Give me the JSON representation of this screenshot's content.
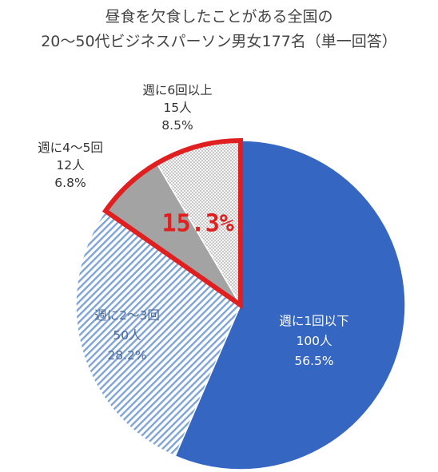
{
  "chart_data": {
    "type": "pie",
    "title_lines": [
      "昼食を欠食したことがある全国の",
      "20～50代ビジネスパーソン男女177名（単一回答）"
    ],
    "slices": [
      {
        "label": "週に1回以下",
        "count": "100人",
        "percent_label": "56.5%",
        "value": 56.5,
        "color": "#3567c2"
      },
      {
        "label": "週に2～3回",
        "count": "50人",
        "percent_label": "28.2%",
        "value": 28.2,
        "color": "#8fb1dc"
      },
      {
        "label": "週に4～5回",
        "count": "12人",
        "percent_label": "6.8%",
        "value": 6.8,
        "color": "#a3a3a3"
      },
      {
        "label": "週に6回以上",
        "count": "15人",
        "percent_label": "8.5%",
        "value": 8.5,
        "color": "#e2e2e2"
      }
    ],
    "highlight": {
      "text": "15.3%",
      "color": "#e02020",
      "slices": [
        "週に4～5回",
        "週に6回以上"
      ]
    }
  }
}
